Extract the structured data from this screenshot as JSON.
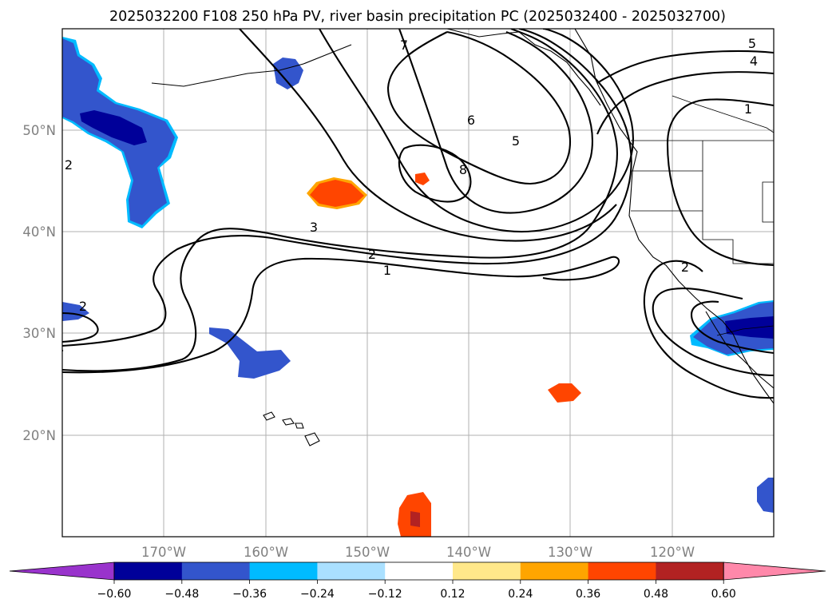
{
  "title": "2025032200 F108 250 hPa PV, river basin precipitation PC (2025032400 - 2025032700)",
  "lat_labels": [
    "50°N",
    "40°N",
    "30°N",
    "20°N"
  ],
  "lon_labels": [
    "170°W",
    "160°W",
    "150°W",
    "140°W",
    "130°W",
    "120°W"
  ],
  "contour_labels": [
    "7",
    "6",
    "5",
    "8",
    "5",
    "4",
    "1",
    "3",
    "2",
    "1",
    "2",
    "2",
    "2"
  ],
  "colorbar": {
    "ticks": [
      "−0.60",
      "−0.48",
      "−0.36",
      "−0.24",
      "−0.12",
      "0.12",
      "0.24",
      "0.36",
      "0.48",
      "0.60"
    ],
    "colors": [
      "#9933cc",
      "#000099",
      "#3355cc",
      "#00bbff",
      "#aae0ff",
      "#ffffff",
      "#ffe88a",
      "#ffa500",
      "#ff4500",
      "#b22222",
      "#ff88aa"
    ]
  },
  "map": {
    "projection": "PlateCarree",
    "lon_range": [
      "180°W",
      "110°W"
    ],
    "lat_range": [
      "10°N",
      "60°N"
    ],
    "fields": [
      "250 hPa PV (contours)",
      "river basin precipitation PC (shaded)"
    ]
  }
}
